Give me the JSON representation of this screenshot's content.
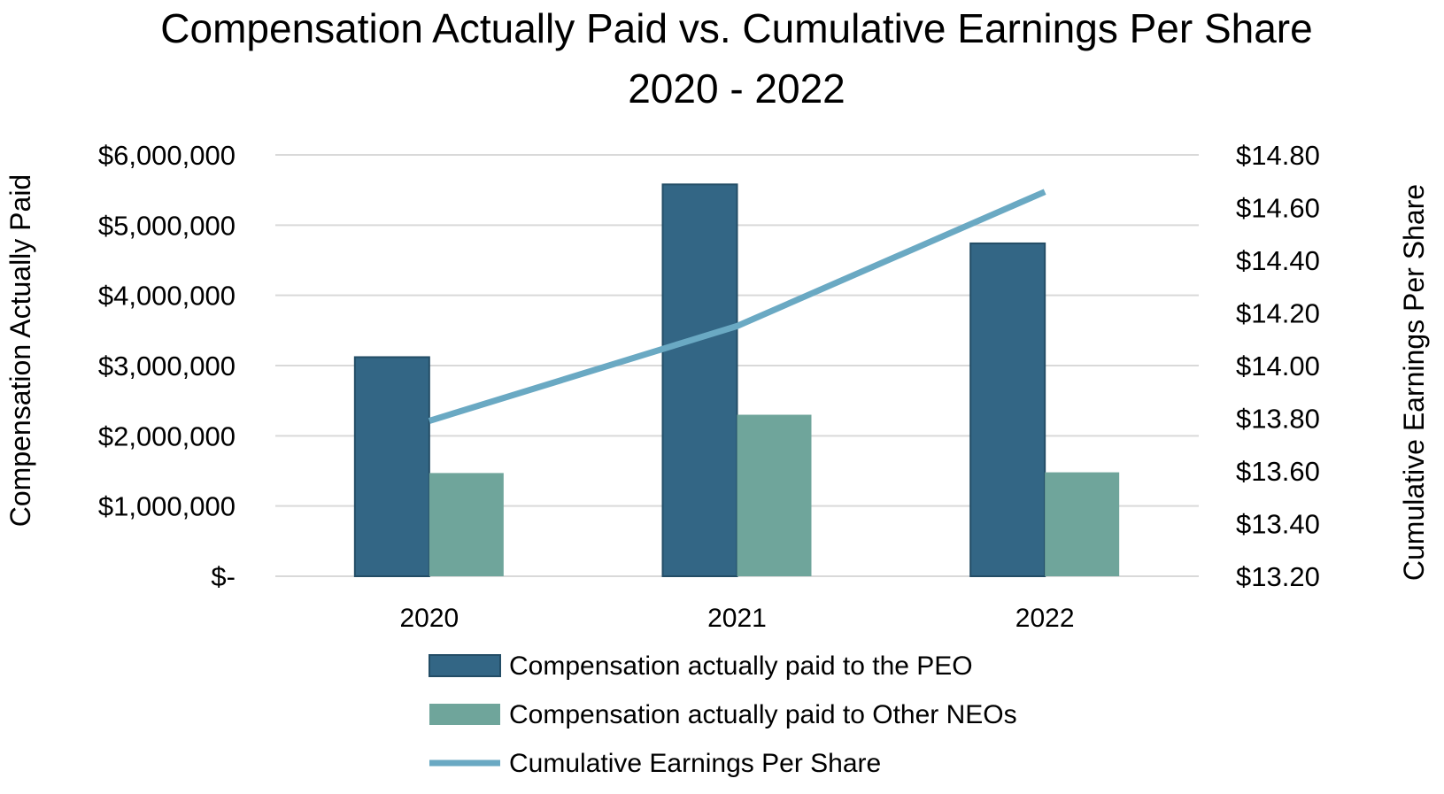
{
  "chart_data": {
    "type": "bar",
    "title": "Compensation Actually Paid vs. Cumulative Earnings Per Share",
    "subtitle": "2020 - 2022",
    "categories": [
      "2020",
      "2021",
      "2022"
    ],
    "ylabel": "Compensation Actually Paid",
    "y2label": "Cumulative Earnings Per Share",
    "ylim": [
      0,
      6000000
    ],
    "y2lim": [
      13.2,
      14.8
    ],
    "yticks": [
      {
        "value": 0,
        "label": "$-"
      },
      {
        "value": 1000000,
        "label": "$1,000,000"
      },
      {
        "value": 2000000,
        "label": "$2,000,000"
      },
      {
        "value": 3000000,
        "label": "$3,000,000"
      },
      {
        "value": 4000000,
        "label": "$4,000,000"
      },
      {
        "value": 5000000,
        "label": "$5,000,000"
      },
      {
        "value": 6000000,
        "label": "$6,000,000"
      }
    ],
    "y2ticks": [
      {
        "value": 13.2,
        "label": "$13.20"
      },
      {
        "value": 13.4,
        "label": "$13.40"
      },
      {
        "value": 13.6,
        "label": "$13.60"
      },
      {
        "value": 13.8,
        "label": "$13.80"
      },
      {
        "value": 14.0,
        "label": "$14.00"
      },
      {
        "value": 14.2,
        "label": "$14.20"
      },
      {
        "value": 14.4,
        "label": "$14.40"
      },
      {
        "value": 14.6,
        "label": "$14.60"
      },
      {
        "value": 14.8,
        "label": "$14.80"
      }
    ],
    "grid": true,
    "legend_position": "bottom",
    "series": [
      {
        "name": "Compensation actually paid to the PEO",
        "type": "bar",
        "axis": "left",
        "color": "#336685",
        "values": [
          3120000,
          5580000,
          4740000
        ]
      },
      {
        "name": "Compensation actually paid to Other NEOs",
        "type": "bar",
        "axis": "left",
        "color": "#6fa59b",
        "values": [
          1470000,
          2300000,
          1480000
        ]
      },
      {
        "name": "Cumulative Earnings Per Share",
        "type": "line",
        "axis": "right",
        "color": "#6aa9c3",
        "values": [
          13.79,
          14.15,
          14.66
        ]
      }
    ]
  }
}
